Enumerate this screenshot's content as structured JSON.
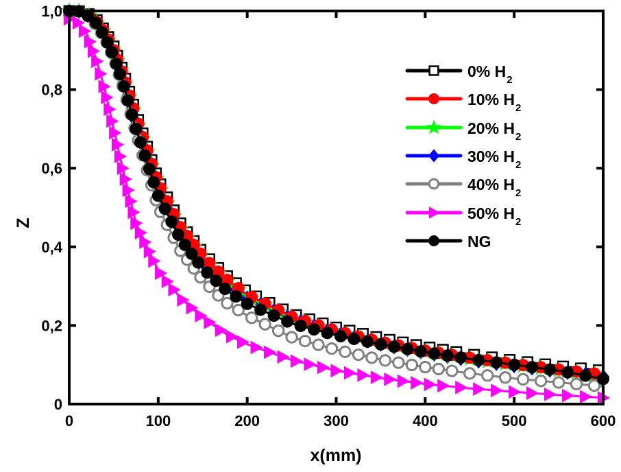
{
  "chart_data": {
    "type": "line",
    "title": "",
    "xlabel": "x(mm)",
    "ylabel": "Z",
    "xlim": [
      0,
      600
    ],
    "ylim": [
      0,
      1.0
    ],
    "xticks": [
      "0",
      "100",
      "200",
      "300",
      "400",
      "500",
      "600"
    ],
    "yticks": [
      "0",
      "0,2",
      "0,4",
      "0,6",
      "0,8",
      "1,0"
    ],
    "xtick_values": [
      0,
      100,
      200,
      300,
      400,
      500,
      600
    ],
    "ytick_values": [
      0,
      0.2,
      0.4,
      0.6,
      0.8,
      1.0
    ],
    "grid": false,
    "legend_position": "top-right",
    "x": [
      0,
      10,
      20,
      30,
      40,
      50,
      60,
      75,
      100,
      125,
      150,
      175,
      200,
      250,
      300,
      350,
      400,
      450,
      500,
      550,
      600
    ],
    "series": [
      {
        "name": "0% H2",
        "label": "0% H",
        "sub": "2",
        "color": "#000000",
        "marker": "square-open",
        "values": [
          1.0,
          1.0,
          0.995,
          0.98,
          0.95,
          0.91,
          0.85,
          0.74,
          0.57,
          0.46,
          0.385,
          0.33,
          0.285,
          0.23,
          0.195,
          0.168,
          0.146,
          0.127,
          0.111,
          0.097,
          0.085
        ]
      },
      {
        "name": "10% H2",
        "label": "10% H",
        "sub": "2",
        "color": "#ff0000",
        "marker": "circle",
        "values": [
          1.0,
          1.0,
          0.993,
          0.975,
          0.945,
          0.9,
          0.84,
          0.73,
          0.56,
          0.45,
          0.375,
          0.32,
          0.278,
          0.222,
          0.186,
          0.158,
          0.136,
          0.118,
          0.102,
          0.088,
          0.075
        ]
      },
      {
        "name": "20% H2",
        "label": "20% H",
        "sub": "2",
        "color": "#00ff00",
        "marker": "star",
        "values": [
          1.0,
          1.0,
          0.992,
          0.973,
          0.942,
          0.897,
          0.836,
          0.725,
          0.555,
          0.445,
          0.37,
          0.316,
          0.274,
          0.219,
          0.183,
          0.155,
          0.133,
          0.115,
          0.1,
          0.086,
          0.073
        ]
      },
      {
        "name": "30% H2",
        "label": "30% H",
        "sub": "2",
        "color": "#0000ff",
        "marker": "diamond",
        "values": [
          1.0,
          1.0,
          0.99,
          0.97,
          0.938,
          0.892,
          0.83,
          0.72,
          0.55,
          0.44,
          0.366,
          0.312,
          0.27,
          0.216,
          0.18,
          0.152,
          0.13,
          0.112,
          0.097,
          0.083,
          0.07
        ]
      },
      {
        "name": "40% H2",
        "label": "40% H",
        "sub": "2",
        "color": "#808080",
        "marker": "circle-open",
        "values": [
          1.0,
          1.0,
          0.99,
          0.965,
          0.93,
          0.88,
          0.81,
          0.69,
          0.5,
          0.39,
          0.315,
          0.26,
          0.225,
          0.17,
          0.138,
          0.113,
          0.094,
          0.078,
          0.065,
          0.055,
          0.045
        ]
      },
      {
        "name": "50% H2",
        "label": "50% H",
        "sub": "2",
        "color": "#ff00ff",
        "marker": "triangle-right",
        "values": [
          0.98,
          0.97,
          0.94,
          0.88,
          0.8,
          0.7,
          0.6,
          0.46,
          0.34,
          0.27,
          0.22,
          0.18,
          0.152,
          0.112,
          0.085,
          0.066,
          0.051,
          0.04,
          0.031,
          0.023,
          0.016
        ]
      },
      {
        "name": "NG",
        "label": "NG",
        "sub": "",
        "color": "#000000",
        "marker": "circle",
        "values": [
          1.0,
          1.0,
          0.99,
          0.97,
          0.935,
          0.885,
          0.82,
          0.7,
          0.53,
          0.42,
          0.345,
          0.293,
          0.255,
          0.205,
          0.175,
          0.152,
          0.132,
          0.115,
          0.1,
          0.085,
          0.064
        ]
      }
    ]
  }
}
